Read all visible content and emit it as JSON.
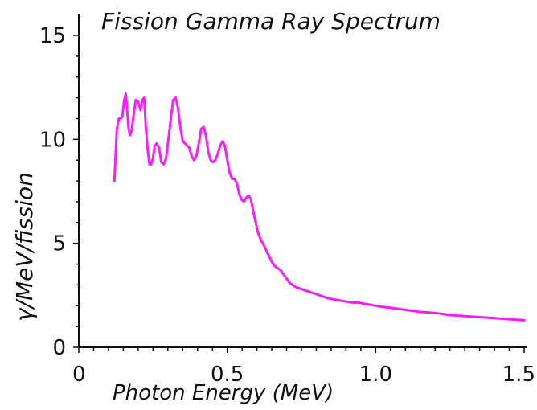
{
  "chart_data": {
    "type": "line",
    "title": "Fission Gamma Ray Spectrum",
    "xlabel": "Photon Energy (MeV)",
    "ylabel": "γ/MeV/fission",
    "xlim": [
      0,
      1.5
    ],
    "ylim": [
      0,
      15
    ],
    "x_ticks": [
      0,
      0.5,
      1.0,
      1.5
    ],
    "x_tick_labels": [
      "0",
      "0.5",
      "1.0",
      "1.5"
    ],
    "y_ticks": [
      0,
      5,
      10,
      15
    ],
    "y_tick_labels": [
      "0",
      "5",
      "10",
      "15"
    ],
    "grid": false,
    "legend": "none",
    "series_color": "#ff1aff",
    "series": [
      {
        "x": [
          0.12,
          0.128,
          0.135,
          0.14,
          0.147,
          0.152,
          0.158,
          0.163,
          0.167,
          0.172,
          0.178,
          0.185,
          0.192,
          0.2,
          0.208,
          0.214,
          0.22,
          0.226,
          0.232,
          0.238,
          0.244,
          0.25,
          0.256,
          0.262,
          0.27,
          0.278,
          0.286,
          0.294,
          0.302,
          0.31,
          0.318,
          0.326,
          0.334,
          0.342,
          0.35,
          0.358,
          0.365,
          0.372,
          0.38,
          0.388,
          0.396,
          0.404,
          0.412,
          0.42,
          0.428,
          0.436,
          0.444,
          0.452,
          0.46,
          0.468,
          0.476,
          0.484,
          0.492,
          0.5,
          0.508,
          0.516,
          0.524,
          0.532,
          0.54,
          0.548,
          0.556,
          0.564,
          0.572,
          0.58,
          0.588,
          0.596,
          0.604,
          0.612,
          0.62,
          0.63,
          0.64,
          0.65,
          0.66,
          0.67,
          0.68,
          0.69,
          0.7,
          0.71,
          0.72,
          0.73,
          0.74,
          0.75,
          0.76,
          0.78,
          0.8,
          0.82,
          0.84,
          0.86,
          0.88,
          0.9,
          0.92,
          0.94,
          0.96,
          0.98,
          1.0,
          1.02,
          1.05,
          1.1,
          1.15,
          1.2,
          1.25,
          1.3,
          1.35,
          1.4,
          1.45,
          1.5
        ],
        "y": [
          8.0,
          10.5,
          11.0,
          11.0,
          11.1,
          11.8,
          12.2,
          11.4,
          10.6,
          10.2,
          10.4,
          11.2,
          11.9,
          11.8,
          11.4,
          11.9,
          12.0,
          10.5,
          9.5,
          8.8,
          8.8,
          9.1,
          9.7,
          9.8,
          9.6,
          8.9,
          8.8,
          9.1,
          10.0,
          11.0,
          11.9,
          12.0,
          11.5,
          10.6,
          9.9,
          9.8,
          9.7,
          9.6,
          9.2,
          9.0,
          9.2,
          9.8,
          10.5,
          10.6,
          10.2,
          9.4,
          9.0,
          8.9,
          9.0,
          9.3,
          9.7,
          9.9,
          9.7,
          9.0,
          8.4,
          8.1,
          8.1,
          7.9,
          7.4,
          7.1,
          7.0,
          7.2,
          7.3,
          7.1,
          6.5,
          6.0,
          5.5,
          5.2,
          5.0,
          4.7,
          4.4,
          4.1,
          3.9,
          3.8,
          3.7,
          3.5,
          3.3,
          3.1,
          3.0,
          2.9,
          2.85,
          2.8,
          2.75,
          2.65,
          2.55,
          2.45,
          2.35,
          2.3,
          2.25,
          2.2,
          2.15,
          2.15,
          2.1,
          2.05,
          2.0,
          1.95,
          1.9,
          1.8,
          1.7,
          1.65,
          1.55,
          1.5,
          1.45,
          1.4,
          1.35,
          1.3
        ]
      }
    ]
  }
}
